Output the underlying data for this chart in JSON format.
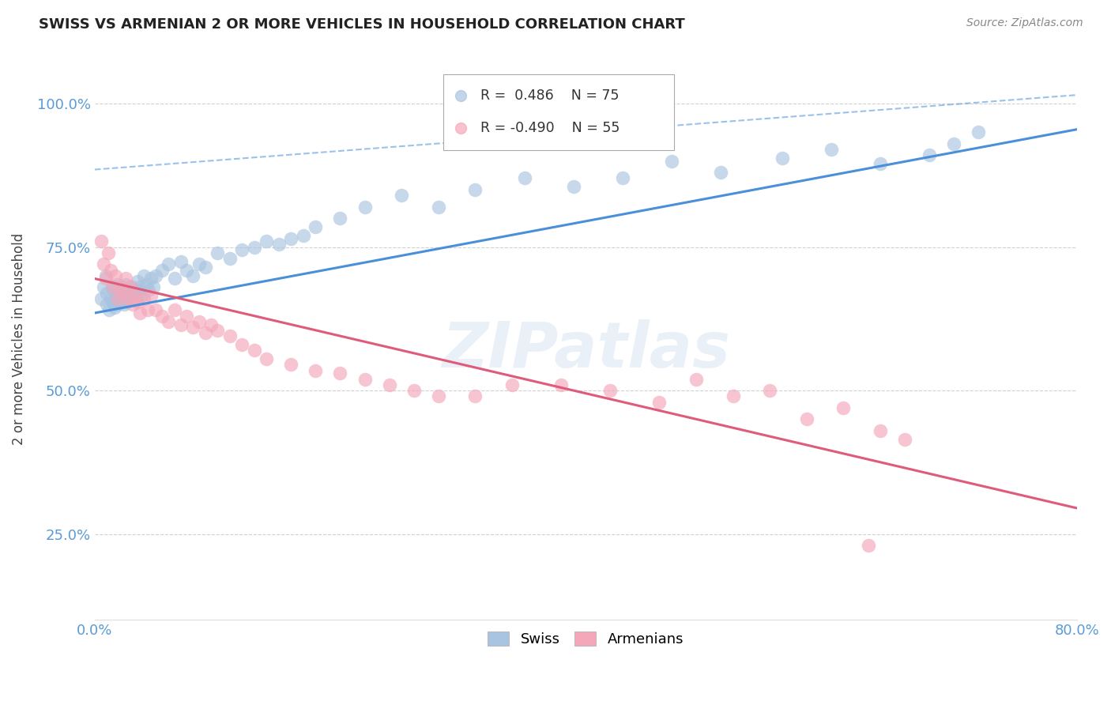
{
  "title": "SWISS VS ARMENIAN 2 OR MORE VEHICLES IN HOUSEHOLD CORRELATION CHART",
  "source": "Source: ZipAtlas.com",
  "ylabel": "2 or more Vehicles in Household",
  "xlim": [
    0.0,
    0.8
  ],
  "ylim": [
    0.1,
    1.08
  ],
  "ytick_vals": [
    0.25,
    0.5,
    0.75,
    1.0
  ],
  "ytick_labels": [
    "25.0%",
    "50.0%",
    "75.0%",
    "100.0%"
  ],
  "xtick_vals": [
    0.0,
    0.1,
    0.2,
    0.3,
    0.4,
    0.5,
    0.6,
    0.7,
    0.8
  ],
  "xtick_labels": [
    "0.0%",
    "",
    "",
    "",
    "",
    "",
    "",
    "",
    "80.0%"
  ],
  "swiss_color": "#a8c4e0",
  "armenian_color": "#f4a7b9",
  "swiss_line_color": "#4a90d9",
  "armenian_line_color": "#e05a7a",
  "swiss_R": 0.486,
  "swiss_N": 75,
  "armenian_R": -0.49,
  "armenian_N": 55,
  "background_color": "#ffffff",
  "grid_color": "#cccccc",
  "tick_label_color": "#5b9bd5",
  "watermark": "ZIPatlas",
  "swiss_line_x0": 0.0,
  "swiss_line_y0": 0.635,
  "swiss_line_x1": 0.8,
  "swiss_line_y1": 0.955,
  "armenian_line_x0": 0.0,
  "armenian_line_y0": 0.695,
  "armenian_line_x1": 0.8,
  "armenian_line_y1": 0.295,
  "dash_line_x0": 0.0,
  "dash_line_y0": 0.885,
  "dash_line_x1": 0.8,
  "dash_line_y1": 1.015,
  "swiss_scatter_x": [
    0.005,
    0.007,
    0.009,
    0.01,
    0.01,
    0.012,
    0.013,
    0.014,
    0.015,
    0.015,
    0.016,
    0.017,
    0.018,
    0.018,
    0.019,
    0.02,
    0.02,
    0.021,
    0.022,
    0.022,
    0.023,
    0.024,
    0.025,
    0.025,
    0.026,
    0.027,
    0.028,
    0.03,
    0.031,
    0.032,
    0.033,
    0.034,
    0.035,
    0.036,
    0.037,
    0.038,
    0.04,
    0.042,
    0.044,
    0.046,
    0.048,
    0.05,
    0.055,
    0.06,
    0.065,
    0.07,
    0.075,
    0.08,
    0.085,
    0.09,
    0.1,
    0.11,
    0.12,
    0.13,
    0.14,
    0.15,
    0.16,
    0.17,
    0.18,
    0.2,
    0.22,
    0.25,
    0.28,
    0.31,
    0.35,
    0.39,
    0.43,
    0.47,
    0.51,
    0.56,
    0.6,
    0.64,
    0.68,
    0.7,
    0.72
  ],
  "swiss_scatter_y": [
    0.66,
    0.68,
    0.7,
    0.65,
    0.67,
    0.64,
    0.66,
    0.68,
    0.655,
    0.675,
    0.645,
    0.66,
    0.67,
    0.685,
    0.65,
    0.66,
    0.67,
    0.655,
    0.665,
    0.68,
    0.66,
    0.65,
    0.67,
    0.685,
    0.655,
    0.67,
    0.66,
    0.68,
    0.665,
    0.675,
    0.67,
    0.66,
    0.69,
    0.675,
    0.68,
    0.665,
    0.7,
    0.685,
    0.675,
    0.695,
    0.68,
    0.7,
    0.71,
    0.72,
    0.695,
    0.725,
    0.71,
    0.7,
    0.72,
    0.715,
    0.74,
    0.73,
    0.745,
    0.75,
    0.76,
    0.755,
    0.765,
    0.77,
    0.785,
    0.8,
    0.82,
    0.84,
    0.82,
    0.85,
    0.87,
    0.855,
    0.87,
    0.9,
    0.88,
    0.905,
    0.92,
    0.895,
    0.91,
    0.93,
    0.95
  ],
  "armenian_scatter_x": [
    0.005,
    0.007,
    0.009,
    0.011,
    0.013,
    0.015,
    0.017,
    0.019,
    0.021,
    0.023,
    0.025,
    0.027,
    0.029,
    0.031,
    0.033,
    0.035,
    0.037,
    0.04,
    0.043,
    0.046,
    0.05,
    0.055,
    0.06,
    0.065,
    0.07,
    0.075,
    0.08,
    0.085,
    0.09,
    0.095,
    0.1,
    0.11,
    0.12,
    0.13,
    0.14,
    0.16,
    0.18,
    0.2,
    0.22,
    0.24,
    0.26,
    0.28,
    0.31,
    0.34,
    0.38,
    0.42,
    0.46,
    0.49,
    0.52,
    0.55,
    0.58,
    0.61,
    0.64,
    0.66,
    0.63
  ],
  "armenian_scatter_y": [
    0.76,
    0.72,
    0.695,
    0.74,
    0.71,
    0.68,
    0.7,
    0.66,
    0.68,
    0.67,
    0.695,
    0.66,
    0.68,
    0.65,
    0.67,
    0.655,
    0.635,
    0.66,
    0.64,
    0.665,
    0.64,
    0.63,
    0.62,
    0.64,
    0.615,
    0.63,
    0.61,
    0.62,
    0.6,
    0.615,
    0.605,
    0.595,
    0.58,
    0.57,
    0.555,
    0.545,
    0.535,
    0.53,
    0.52,
    0.51,
    0.5,
    0.49,
    0.49,
    0.51,
    0.51,
    0.5,
    0.48,
    0.52,
    0.49,
    0.5,
    0.45,
    0.47,
    0.43,
    0.415,
    0.23
  ]
}
